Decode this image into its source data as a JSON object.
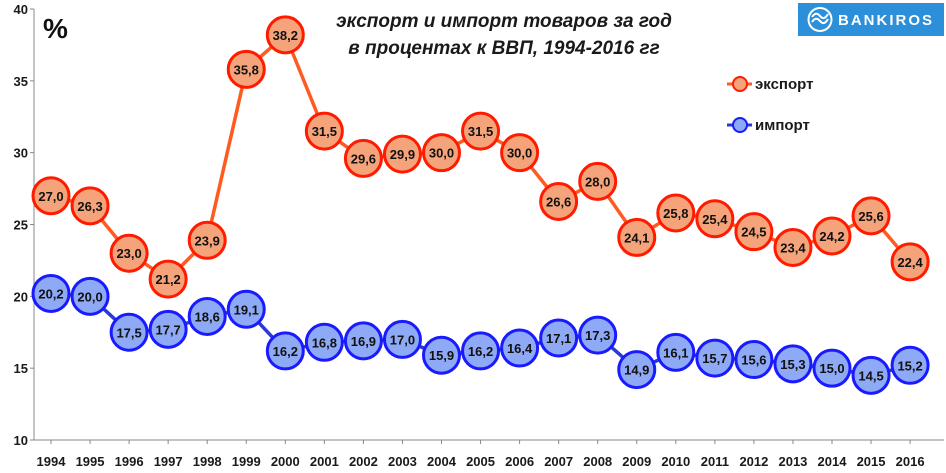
{
  "chart_data": {
    "type": "line",
    "title_lines": [
      "экспорт и импорт товаров за год",
      "в процентах к ВВП, 1994-2016 гг"
    ],
    "unit_label": "%",
    "x": [
      "1994",
      "1995",
      "1996",
      "1997",
      "1998",
      "1999",
      "2000",
      "2001",
      "2002",
      "2003",
      "2004",
      "2005",
      "2006",
      "2007",
      "2008",
      "2009",
      "2010",
      "2011",
      "2012",
      "2013",
      "2014",
      "2015",
      "2016"
    ],
    "series": [
      {
        "name": "экспорт",
        "color": "#f5a37a",
        "stroke": "#ff1a00",
        "line": "#ff5a1f",
        "values": [
          27.0,
          26.3,
          23.0,
          21.2,
          23.9,
          35.8,
          38.2,
          31.5,
          29.6,
          29.9,
          30.0,
          31.5,
          30.0,
          26.6,
          28.0,
          24.1,
          25.8,
          25.4,
          24.5,
          23.4,
          24.2,
          25.6,
          22.4
        ],
        "labels": [
          "27,0",
          "26,3",
          "23,0",
          "21,2",
          "23,9",
          "35,8",
          "38,2",
          "31,5",
          "29,6",
          "29,9",
          "30,0",
          "31,5",
          "30,0",
          "26,6",
          "28,0",
          "24,1",
          "25,8",
          "25,4",
          "24,5",
          "23,4",
          "24,2",
          "25,6",
          "22,4"
        ]
      },
      {
        "name": "импорт",
        "color": "#8ea9f5",
        "stroke": "#1a1aff",
        "line": "#2a3ad6",
        "values": [
          20.2,
          20.0,
          17.5,
          17.7,
          18.6,
          19.1,
          16.2,
          16.8,
          16.9,
          17.0,
          15.9,
          16.2,
          16.4,
          17.1,
          17.3,
          14.9,
          16.1,
          15.7,
          15.6,
          15.3,
          15.0,
          14.5,
          15.2
        ],
        "labels": [
          "20,2",
          "20,0",
          "17,5",
          "17,7",
          "18,6",
          "19,1",
          "16,2",
          "16,8",
          "16,9",
          "17,0",
          "15,9",
          "16,2",
          "16,4",
          "17,1",
          "17,3",
          "14,9",
          "16,1",
          "15,7",
          "15,6",
          "15,3",
          "15,0",
          "14,5",
          "15,2"
        ]
      }
    ],
    "ylim": [
      10,
      40
    ],
    "yticks": [
      "10",
      "15",
      "20",
      "25",
      "30",
      "35",
      "40"
    ],
    "grid": false,
    "legend_position": "top-right"
  },
  "logo": {
    "text": "BANKIROS",
    "color": "#2b8fd9",
    "icon": "bankiros-logo-icon"
  }
}
